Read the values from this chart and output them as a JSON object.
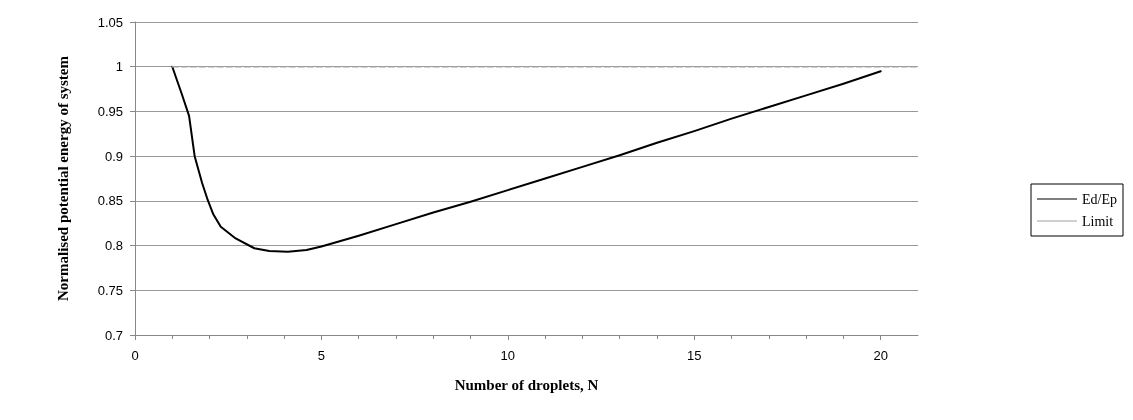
{
  "chart_data": {
    "type": "line",
    "xlabel": "Number of droplets, N",
    "ylabel": "Normalised potential energy of system",
    "series": [
      {
        "name": "Ed/Ep",
        "color": "#000000",
        "x": [
          1,
          1.25,
          1.45,
          1.6,
          1.8,
          1.95,
          2.1,
          2.3,
          2.7,
          3.2,
          3.6,
          4.1,
          4.6,
          5,
          6,
          7,
          8,
          9,
          10,
          11,
          12,
          13,
          14,
          15,
          16,
          17,
          18,
          19,
          20
        ],
        "values": [
          1,
          0.97,
          0.945,
          0.9,
          0.87,
          0.851,
          0.835,
          0.821,
          0.808,
          0.797,
          0.794,
          0.793,
          0.795,
          0.799,
          0.811,
          0.824,
          0.837,
          0.849,
          0.862,
          0.875,
          0.888,
          0.901,
          0.915,
          0.928,
          0.942,
          0.955,
          0.968,
          0.981,
          0.995
        ]
      },
      {
        "name": "Limit",
        "color": "#a0a0a0",
        "line_style": "dashed",
        "x": [
          1,
          21
        ],
        "values": [
          1,
          1
        ]
      }
    ],
    "xlim": [
      0,
      21
    ],
    "xticks": [
      0,
      5,
      10,
      15,
      20
    ],
    "ylim": [
      0.7,
      1.05
    ],
    "yticks": [
      0.7,
      0.75,
      0.8,
      0.85,
      0.9,
      0.95,
      1,
      1.05
    ],
    "grid": "y",
    "legend": "right",
    "marker": "none",
    "line_style": "solid"
  }
}
